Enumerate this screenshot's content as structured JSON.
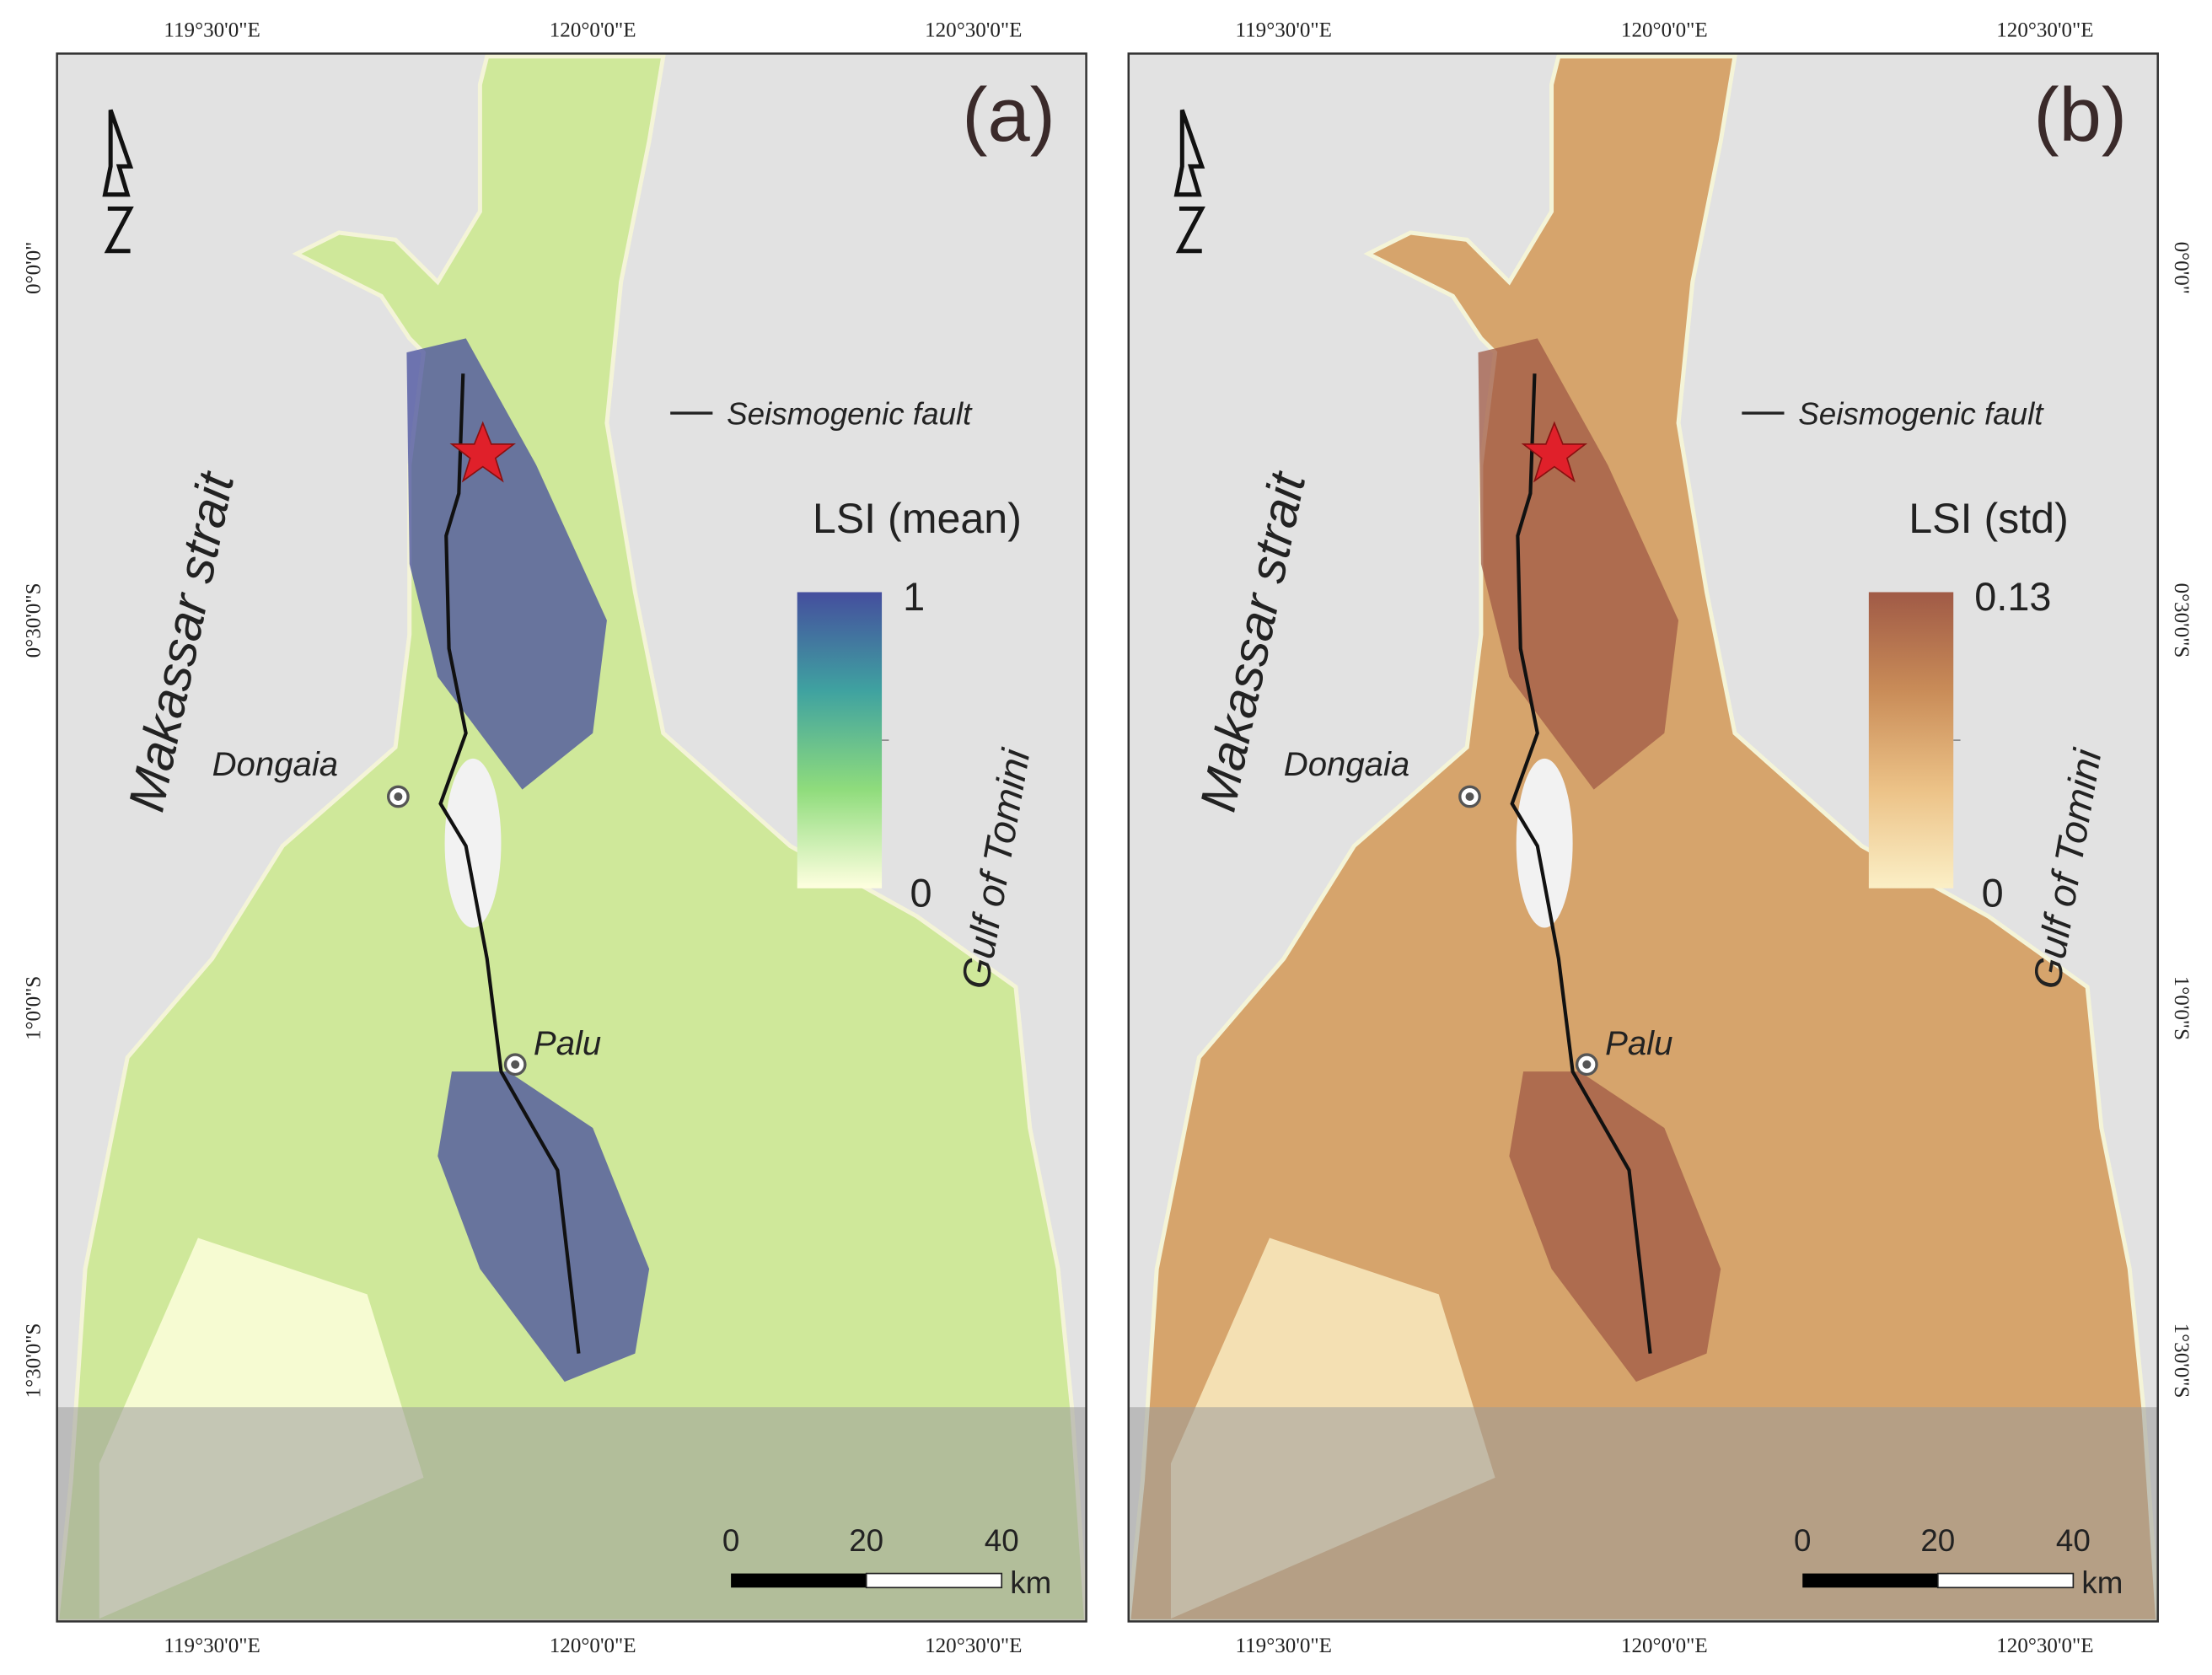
{
  "panels": [
    {
      "label": "(a)",
      "x_labels": [
        "119°30'0\"E",
        "120°0'0\"E",
        "120°30'0\"E"
      ],
      "y_labels": [
        "0°0'0\"",
        "0°30'0\"S",
        "1°0'0\"S",
        "1°30'0\"S"
      ],
      "fault_legend": "Seismogenic fault",
      "legend": {
        "title": "LSI (mean)",
        "max": 1,
        "min": 0,
        "colors": [
          "#ffffe0",
          "#8fdc7c",
          "#3fa2a0",
          "#454e9e"
        ]
      },
      "land_color": "#cfe89a",
      "places": [
        "Dongaia",
        "Palu"
      ],
      "water": [
        "Makassar strait",
        "Gulf of Tomini"
      ],
      "scale": {
        "ticks": [
          0,
          20,
          40
        ],
        "unit": "km"
      }
    },
    {
      "label": "(b)",
      "x_labels": [
        "119°30'0\"E",
        "120°0'0\"E",
        "120°30'0\"E"
      ],
      "y_labels": [
        "0°0'0\"",
        "0°30'0\"S",
        "1°0'0\"S",
        "1°30'0\"S"
      ],
      "fault_legend": "Seismogenic fault",
      "legend": {
        "title": "LSI (std)",
        "max": 0.13,
        "min": 0,
        "colors": [
          "#fbefc6",
          "#ecc287",
          "#c98c58",
          "#a05a46"
        ]
      },
      "land_color": "#d6a46c",
      "places": [
        "Dongaia",
        "Palu"
      ],
      "water": [
        "Makassar strait",
        "Gulf of Tomini"
      ],
      "scale": {
        "ticks": [
          0,
          20,
          40
        ],
        "unit": "km"
      }
    }
  ]
}
